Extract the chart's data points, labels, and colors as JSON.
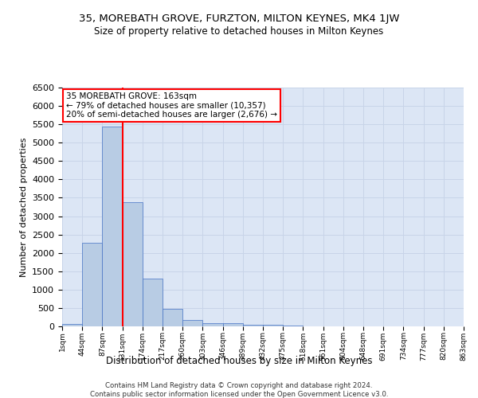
{
  "title": "35, MOREBATH GROVE, FURZTON, MILTON KEYNES, MK4 1JW",
  "subtitle": "Size of property relative to detached houses in Milton Keynes",
  "xlabel": "Distribution of detached houses by size in Milton Keynes",
  "ylabel": "Number of detached properties",
  "footer_line1": "Contains HM Land Registry data © Crown copyright and database right 2024.",
  "footer_line2": "Contains public sector information licensed under the Open Government Licence v3.0.",
  "annotation_line1": "35 MOREBATH GROVE: 163sqm",
  "annotation_line2": "← 79% of detached houses are smaller (10,357)",
  "annotation_line3": "20% of semi-detached houses are larger (2,676) →",
  "bar_values": [
    75,
    2270,
    5430,
    3390,
    1290,
    475,
    165,
    80,
    80,
    50,
    40,
    20,
    10,
    10,
    5,
    5,
    5,
    5,
    5,
    5
  ],
  "bin_labels": [
    "1sqm",
    "44sqm",
    "87sqm",
    "131sqm",
    "174sqm",
    "217sqm",
    "260sqm",
    "303sqm",
    "346sqm",
    "389sqm",
    "432sqm",
    "475sqm",
    "518sqm",
    "561sqm",
    "604sqm",
    "648sqm",
    "691sqm",
    "734sqm",
    "777sqm",
    "820sqm",
    "863sqm"
  ],
  "bar_color": "#b8cce4",
  "bar_edge_color": "#4472c4",
  "vline_x": 3,
  "vline_color": "red",
  "annotation_box_color": "red",
  "grid_color": "#c8d4e8",
  "background_color": "#dce6f5",
  "ylim": [
    0,
    6500
  ],
  "yticks": [
    0,
    500,
    1000,
    1500,
    2000,
    2500,
    3000,
    3500,
    4000,
    4500,
    5000,
    5500,
    6000,
    6500
  ]
}
